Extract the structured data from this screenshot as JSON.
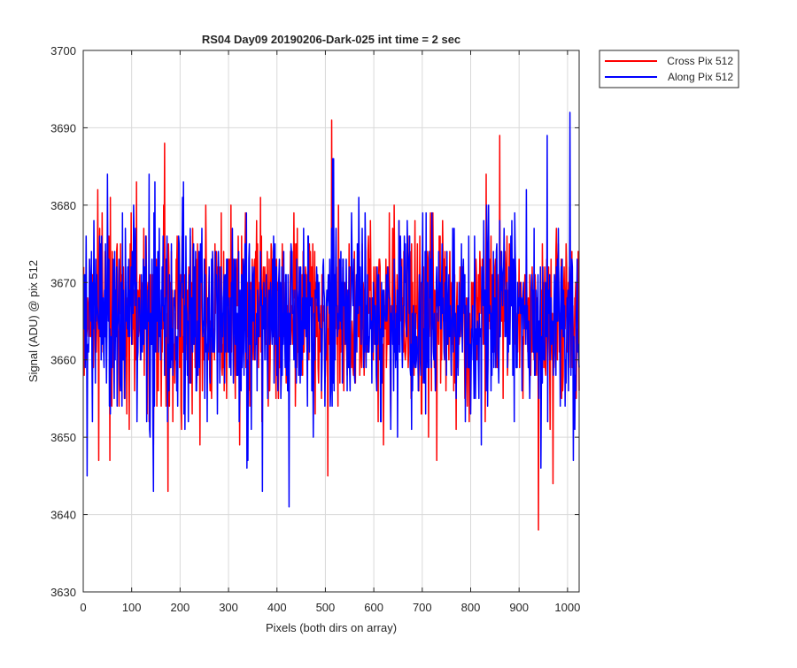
{
  "chart_data": {
    "type": "line",
    "title": "RS04 Day09 20190206-Dark-025 int time = 2 sec",
    "xlabel": "Pixels (both dirs on array)",
    "ylabel": "Signal (ADU) @ pix 512",
    "xlim": [
      0,
      1024
    ],
    "ylim": [
      3630,
      3700
    ],
    "xticks": [
      0,
      100,
      200,
      300,
      400,
      500,
      600,
      700,
      800,
      900,
      1000
    ],
    "yticks": [
      3630,
      3640,
      3650,
      3660,
      3670,
      3680,
      3690,
      3700
    ],
    "grid": true,
    "legend_position": "outside-top-right",
    "n_points": 1024,
    "series": [
      {
        "name": "Cross Pix 512",
        "color": "#ff0000",
        "mean": 3665.5,
        "std": 6.0,
        "x_start": 1,
        "x_end": 1024,
        "notable_points": [
          [
            0,
            3672
          ],
          [
            30,
            3682
          ],
          [
            32,
            3647
          ],
          [
            55,
            3647
          ],
          [
            110,
            3683
          ],
          [
            168,
            3688
          ],
          [
            175,
            3643
          ],
          [
            305,
            3680
          ],
          [
            513,
            3691
          ],
          [
            505,
            3645
          ],
          [
            620,
            3649
          ],
          [
            730,
            3647
          ],
          [
            860,
            3689
          ],
          [
            940,
            3638
          ],
          [
            970,
            3644
          ],
          [
            1024,
            3656
          ]
        ]
      },
      {
        "name": "Along Pix 512",
        "color": "#0000ff",
        "mean": 3665.5,
        "std": 6.0,
        "x_start": 1,
        "x_end": 1024,
        "notable_points": [
          [
            0,
            3671
          ],
          [
            8,
            3645
          ],
          [
            145,
            3643
          ],
          [
            148,
            3683
          ],
          [
            370,
            3643
          ],
          [
            425,
            3641
          ],
          [
            515,
            3686
          ],
          [
            517,
            3686
          ],
          [
            945,
            3646
          ],
          [
            958,
            3689
          ],
          [
            1005,
            3692
          ],
          [
            1012,
            3647
          ],
          [
            1024,
            3659
          ]
        ]
      }
    ]
  }
}
